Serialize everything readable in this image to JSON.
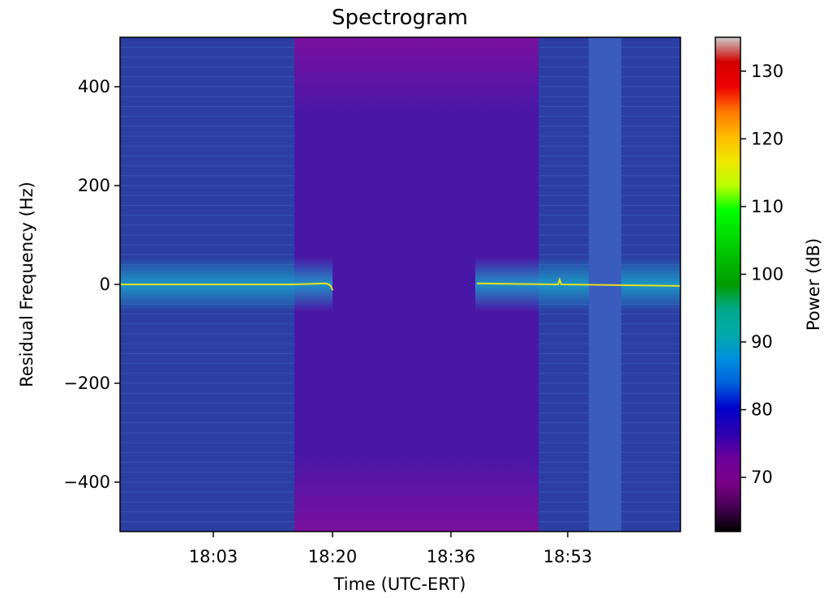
{
  "chart_data": {
    "type": "heatmap",
    "title": "Spectrogram",
    "xlabel": "Time (UTC-ERT)",
    "ylabel": "Residual Frequency (Hz)",
    "colorbar_label": "Power (dB)",
    "colormap": "nipy_spectral",
    "x_tick_labels": [
      "18:03",
      "18:20",
      "18:36",
      "18:53"
    ],
    "y_ticks": [
      400,
      200,
      0,
      -200,
      -400
    ],
    "y_tick_labels": [
      "400",
      "200",
      "0",
      "−200",
      "−400"
    ],
    "ylim": [
      -500,
      500
    ],
    "colorbar_ticks": [
      70,
      80,
      90,
      100,
      110,
      120,
      130
    ],
    "colorbar_range": [
      62,
      135
    ],
    "colorbar_stops": [
      [
        "0.00",
        "#000000"
      ],
      [
        "0.05",
        "#470054"
      ],
      [
        "0.10",
        "#7a0088"
      ],
      [
        "0.15",
        "#6a009a"
      ],
      [
        "0.20",
        "#2b00b0"
      ],
      [
        "0.25",
        "#0000cc"
      ],
      [
        "0.30",
        "#0060dd"
      ],
      [
        "0.35",
        "#0090dd"
      ],
      [
        "0.40",
        "#00aaaa"
      ],
      [
        "0.45",
        "#00aa88"
      ],
      [
        "0.50",
        "#009c00"
      ],
      [
        "0.55",
        "#00bb00"
      ],
      [
        "0.60",
        "#00dd00"
      ],
      [
        "0.65",
        "#00ff00"
      ],
      [
        "0.70",
        "#bbff00"
      ],
      [
        "0.75",
        "#f0e600"
      ],
      [
        "0.80",
        "#ffbb00"
      ],
      [
        "0.85",
        "#ff7700"
      ],
      [
        "0.90",
        "#ee0000"
      ],
      [
        "0.95",
        "#d20000"
      ],
      [
        "1.00",
        "#cccccc"
      ]
    ],
    "segments": [
      {
        "name": "carrier-lock-1",
        "color": "#2c3ea4"
      },
      {
        "name": "occultation",
        "color": "#4414a0"
      },
      {
        "name": "carrier-lock-2",
        "color": "#2c3ea4"
      },
      {
        "name": "noisy-band",
        "color": "#3a5cbe"
      },
      {
        "name": "carrier-lock-3",
        "color": "#2c3ea4"
      }
    ],
    "carrier_color": "#e8e020",
    "carrier_band_color": "#1aa6cc"
  }
}
